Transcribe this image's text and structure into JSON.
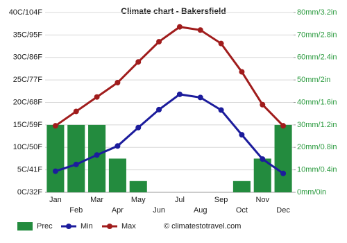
{
  "chart_data": {
    "type": "combo",
    "title": "Climate chart - Bakersfield",
    "categories": [
      "Jan",
      "Feb",
      "Mar",
      "Apr",
      "May",
      "Jun",
      "Jul",
      "Aug",
      "Sep",
      "Oct",
      "Nov",
      "Dec"
    ],
    "ylim": [
      0,
      40
    ],
    "yticks": [
      {
        "value": 0,
        "label": "0C/32F"
      },
      {
        "value": 5,
        "label": "5C/41F"
      },
      {
        "value": 10,
        "label": "10C/50F"
      },
      {
        "value": 15,
        "label": "15C/59F"
      },
      {
        "value": 20,
        "label": "20C/68F"
      },
      {
        "value": 25,
        "label": "25C/77F"
      },
      {
        "value": 30,
        "label": "30C/86F"
      },
      {
        "value": 35,
        "label": "35C/95F"
      },
      {
        "value": 40,
        "label": "40C/104F"
      }
    ],
    "y2lim": [
      0,
      80
    ],
    "y2ticks": [
      {
        "value": 0,
        "label": "0mm/0in"
      },
      {
        "value": 10,
        "label": "10mm/0.4in"
      },
      {
        "value": 20,
        "label": "20mm/0.8in"
      },
      {
        "value": 30,
        "label": "30mm/1.2in"
      },
      {
        "value": 40,
        "label": "40mm/1.6in"
      },
      {
        "value": 50,
        "label": "50mm/2in"
      },
      {
        "value": 60,
        "label": "60mm/2.4in"
      },
      {
        "value": 70,
        "label": "70mm/2.8in"
      },
      {
        "value": 80,
        "label": "80mm/3.2in"
      }
    ],
    "grid": true,
    "series": [
      {
        "name": "Prec",
        "type": "bar",
        "axis": "y2",
        "color": "#238b3e",
        "values": [
          30,
          30,
          30,
          15,
          5,
          0,
          0,
          0,
          0,
          5,
          15,
          30
        ]
      },
      {
        "name": "Min",
        "type": "line",
        "color": "#1c1c9c",
        "values": [
          4.7,
          6.2,
          8.3,
          10.3,
          14.4,
          18.4,
          21.8,
          21.1,
          18.3,
          12.8,
          7.4,
          4.2
        ]
      },
      {
        "name": "Max",
        "type": "line",
        "color": "#a01c1c",
        "values": [
          14.8,
          18,
          21.2,
          24.4,
          29,
          33.5,
          36.8,
          36.1,
          33.1,
          26.8,
          19.5,
          14.8
        ]
      }
    ],
    "credit": "© climatestotravel.com"
  }
}
